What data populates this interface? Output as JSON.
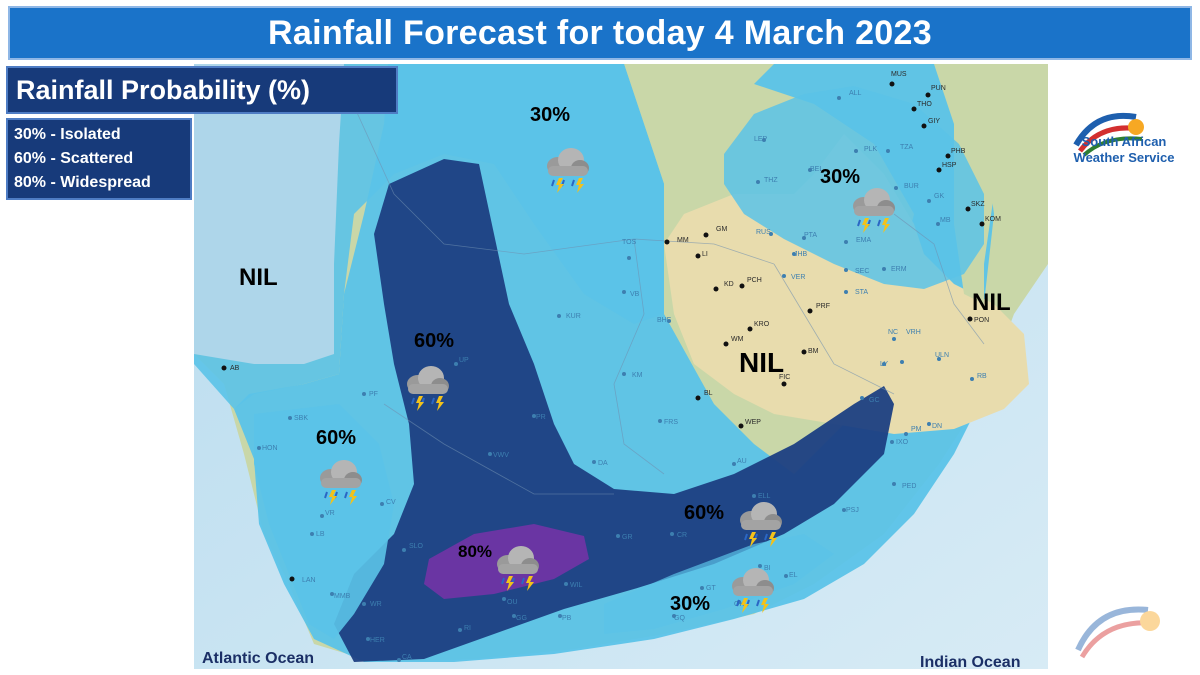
{
  "title": "Rainfall Forecast for today 4 March 2023",
  "legend": {
    "heading": "Rainfall Probability (%)",
    "items": [
      "30% - Isolated",
      "60% - Scattered",
      "80% - Widespread"
    ]
  },
  "logo": {
    "line1": "South African",
    "line2": "Weather Service"
  },
  "regions": {
    "nil_west": "NIL",
    "nil_east": "NIL",
    "nil_central": "NIL",
    "p30_north": "30%",
    "p30_northeast": "30%",
    "p30_south": "30%",
    "p60_central": "60%",
    "p60_west": "60%",
    "p60_southeast": "60%",
    "p80_south": "80%"
  },
  "oceans": {
    "atlantic": "Atlantic Ocean",
    "indian": "Indian Ocean"
  },
  "cities_black": [
    "MUS",
    "PUN",
    "THO",
    "GIY",
    "PHB",
    "HSP",
    "SKZ",
    "KOM",
    "PON",
    "MM",
    "GM",
    "LI",
    "KD",
    "PCH",
    "KRO",
    "WM",
    "BM",
    "FIC",
    "BL",
    "WEP",
    "PRF"
  ],
  "cities_blue": [
    "ALL",
    "LEP",
    "PLK",
    "TZA",
    "THZ",
    "BEL",
    "BUR",
    "GK",
    "MB",
    "RUS",
    "PTA",
    "JHB",
    "EMA",
    "BEL",
    "ERM",
    "VER",
    "SEC",
    "STA",
    "PR",
    "TOS",
    "VB",
    "KUR",
    "BHF",
    "NC",
    "VRH",
    "LY",
    "ULN",
    "RB",
    "KM",
    "AB",
    "UP",
    "PF",
    "SBK",
    "HON",
    "PR",
    "FRS",
    "VWV",
    "DA",
    "AU",
    "GC",
    "PM",
    "DN",
    "IXO",
    "ELL",
    "PED",
    "CV",
    "VR",
    "LB",
    "SLO",
    "GR",
    "CR",
    "LAN",
    "MMB",
    "WR",
    "HER",
    "CA",
    "RI",
    "GG",
    "PB",
    "WIL",
    "OU",
    "GT",
    "BI",
    "EL",
    "OK",
    "GQ",
    "PSJ",
    "CT",
    "AR"
  ],
  "colors": {
    "nil_fill": "#9ecde6",
    "p30_fill": "#5bc3e8",
    "p60_fill": "#1c3f82",
    "p80_fill": "#6a35a3",
    "title_bg": "#1a73c9",
    "legend_bg": "#173a7a"
  },
  "icons": {
    "weather": "thunderstorm-cloud-icon"
  }
}
